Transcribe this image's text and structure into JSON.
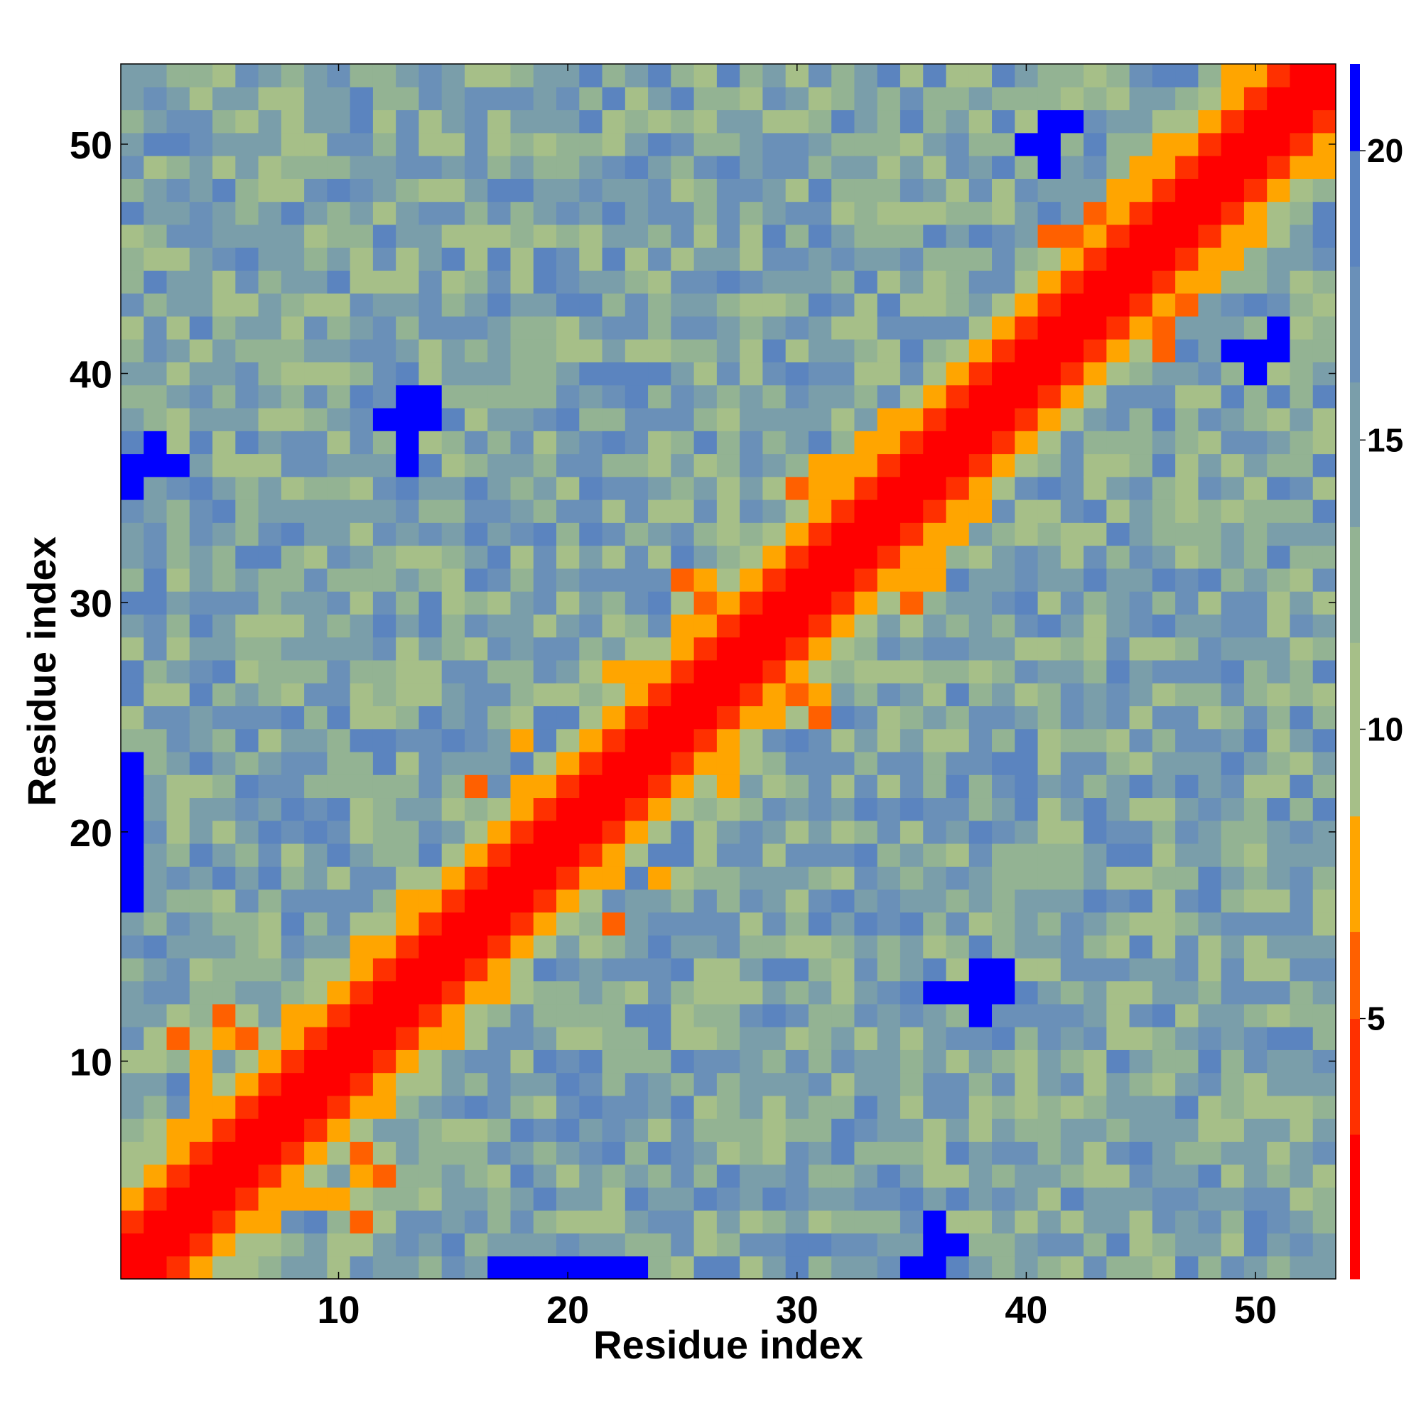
{
  "chart_data": {
    "type": "heatmap",
    "title": "",
    "xlabel": "Residue index",
    "ylabel": "Residue index",
    "n": 53,
    "x_ticks": [
      10,
      20,
      30,
      40,
      50
    ],
    "y_ticks": [
      10,
      20,
      30,
      40,
      50
    ],
    "colorbar": {
      "ticks": [
        5,
        10,
        15,
        20
      ],
      "range": [
        0.5,
        21.5
      ],
      "bands": [
        {
          "from": 0.5,
          "to": 3.0,
          "color": "#ff0000"
        },
        {
          "from": 3.0,
          "to": 5.0,
          "color": "#ff3000"
        },
        {
          "from": 5.0,
          "to": 6.5,
          "color": "#ff6000"
        },
        {
          "from": 6.5,
          "to": 8.5,
          "color": "#ffa500"
        },
        {
          "from": 8.5,
          "to": 11.5,
          "color": "#a6bf88"
        },
        {
          "from": 11.5,
          "to": 13.5,
          "color": "#93b393"
        },
        {
          "from": 13.5,
          "to": 16.0,
          "color": "#7a9eaa"
        },
        {
          "from": 16.0,
          "to": 18.0,
          "color": "#6a90b8"
        },
        {
          "from": 18.0,
          "to": 20.0,
          "color": "#5b84bf"
        },
        {
          "from": 20.0,
          "to": 21.5,
          "color": "#0000ff"
        }
      ]
    },
    "diagonal_band": "distance increases with |i - j|: ~1 on diagonal, ~4 at offset 1, ~5.5 at offset 2, ~7-8 at offset 3-4",
    "high_contact_pairs": [
      [
        22,
        27,
        7
      ],
      [
        23,
        27,
        7
      ],
      [
        24,
        27,
        7
      ],
      [
        25,
        29,
        7
      ],
      [
        26,
        30,
        6
      ],
      [
        26,
        31,
        7
      ],
      [
        25,
        31,
        6
      ],
      [
        5,
        12,
        6
      ],
      [
        5,
        11,
        7
      ],
      [
        6,
        11,
        6
      ],
      [
        4,
        10,
        7
      ],
      [
        3,
        11,
        6
      ],
      [
        4,
        9,
        7
      ],
      [
        41,
        46,
        6
      ],
      [
        42,
        46,
        6
      ],
      [
        43,
        47,
        6
      ],
      [
        44,
        48,
        7
      ],
      [
        45,
        49,
        7
      ],
      [
        18,
        22,
        7
      ],
      [
        19,
        22,
        7
      ],
      [
        16,
        22,
        6
      ],
      [
        18,
        24,
        7
      ],
      [
        30,
        35,
        6
      ],
      [
        31,
        36,
        7
      ],
      [
        33,
        37,
        7
      ],
      [
        34,
        38,
        7
      ]
    ],
    "far_pairs": [
      [
        36,
        13,
        21
      ],
      [
        37,
        13,
        21
      ],
      [
        38,
        13,
        21
      ],
      [
        38,
        14,
        21
      ],
      [
        39,
        13,
        21
      ],
      [
        39,
        14,
        21
      ],
      [
        38,
        12,
        21
      ],
      [
        13,
        39,
        21
      ],
      [
        14,
        39,
        21
      ],
      [
        12,
        38,
        21
      ],
      [
        13,
        38,
        21
      ],
      [
        1,
        22,
        21
      ],
      [
        1,
        23,
        21
      ],
      [
        1,
        21,
        21
      ],
      [
        1,
        20,
        21
      ],
      [
        1,
        19,
        21
      ],
      [
        1,
        18,
        21
      ],
      [
        1,
        17,
        21
      ],
      [
        17,
        1,
        21
      ],
      [
        18,
        1,
        21
      ],
      [
        19,
        1,
        21
      ],
      [
        20,
        1,
        21
      ],
      [
        21,
        1,
        21
      ],
      [
        22,
        1,
        21
      ],
      [
        23,
        1,
        21
      ],
      [
        49,
        41,
        21
      ],
      [
        50,
        41,
        21
      ],
      [
        51,
        41,
        21
      ],
      [
        51,
        42,
        21
      ],
      [
        50,
        40,
        21
      ],
      [
        41,
        49,
        21
      ],
      [
        41,
        50,
        21
      ],
      [
        42,
        51,
        21
      ],
      [
        40,
        50,
        21
      ],
      [
        36,
        3,
        21
      ],
      [
        36,
        2,
        21
      ],
      [
        37,
        2,
        21
      ],
      [
        36,
        1,
        21
      ],
      [
        35,
        1,
        21
      ],
      [
        3,
        36,
        21
      ],
      [
        2,
        36,
        21
      ],
      [
        2,
        37,
        21
      ],
      [
        1,
        36,
        21
      ],
      [
        1,
        35,
        21
      ]
    ]
  }
}
